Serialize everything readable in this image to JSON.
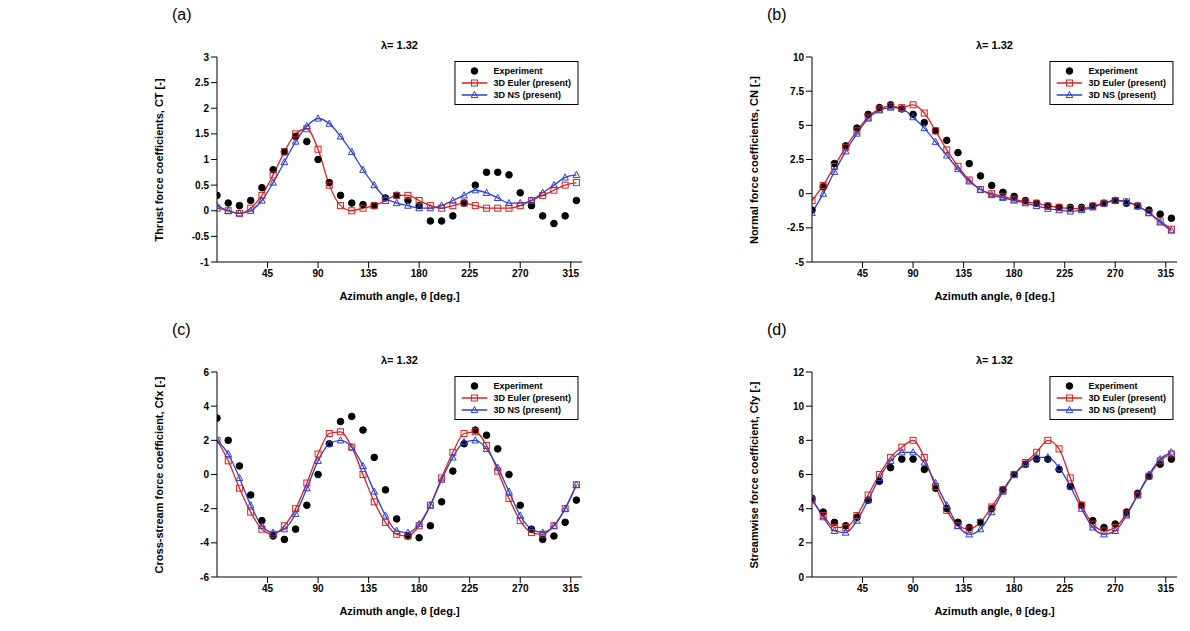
{
  "chart_data": [
    {
      "type": "line",
      "panel_label": "(a)",
      "title": "λ= 1.32",
      "x_label": "Azimuth angle, θ [deg.]",
      "y_label": "Thrust force coefficients, CT [-]",
      "xlim": [
        0,
        325
      ],
      "xticks": [
        45,
        90,
        135,
        180,
        225,
        270,
        315
      ],
      "ylim": [
        -1,
        3
      ],
      "yticks": [
        -1,
        -0.5,
        0,
        0.5,
        1,
        1.5,
        2,
        2.5,
        3
      ],
      "grid": false,
      "legend": "upper right",
      "series": [
        {
          "name": "Experiment",
          "color": "#000000",
          "type": "scatter",
          "marker": "circle",
          "x": [
            0,
            10,
            20,
            30,
            40,
            50,
            60,
            70,
            80,
            90,
            100,
            110,
            120,
            130,
            140,
            150,
            160,
            170,
            180,
            190,
            200,
            210,
            220,
            230,
            240,
            250,
            260,
            270,
            280,
            290,
            300,
            310,
            320
          ],
          "values": [
            0.3,
            0.15,
            0.1,
            0.2,
            0.45,
            0.8,
            1.15,
            1.45,
            1.35,
            1.0,
            0.55,
            0.3,
            0.15,
            0.12,
            0.1,
            0.25,
            0.3,
            0.2,
            0.1,
            -0.2,
            -0.2,
            -0.1,
            0.15,
            0.5,
            0.75,
            0.75,
            0.7,
            0.35,
            0.1,
            -0.1,
            -0.25,
            -0.1,
            0.2
          ]
        },
        {
          "name": "3D Euler (present)",
          "color": "#e0201e",
          "type": "line",
          "marker": "square",
          "line_style": "solid",
          "x": [
            0,
            10,
            20,
            30,
            40,
            50,
            60,
            70,
            80,
            90,
            100,
            110,
            120,
            130,
            140,
            150,
            160,
            170,
            180,
            190,
            200,
            210,
            220,
            230,
            240,
            250,
            260,
            270,
            280,
            290,
            300,
            310,
            320
          ],
          "values": [
            0.05,
            0.0,
            -0.05,
            0.05,
            0.3,
            0.7,
            1.15,
            1.5,
            1.6,
            1.2,
            0.5,
            0.1,
            0.0,
            0.05,
            0.1,
            0.2,
            0.3,
            0.3,
            0.2,
            0.1,
            0.05,
            0.1,
            0.15,
            0.1,
            0.05,
            0.05,
            0.05,
            0.1,
            0.2,
            0.3,
            0.4,
            0.5,
            0.55
          ]
        },
        {
          "name": "3D NS (present)",
          "color": "#2b3fd6",
          "type": "line",
          "marker": "triangle",
          "line_style": "solid",
          "x": [
            0,
            10,
            20,
            30,
            40,
            50,
            60,
            70,
            80,
            90,
            100,
            110,
            120,
            130,
            140,
            150,
            160,
            170,
            180,
            190,
            200,
            210,
            220,
            230,
            240,
            250,
            260,
            270,
            280,
            290,
            300,
            310,
            320
          ],
          "values": [
            0.1,
            0.0,
            -0.05,
            0.0,
            0.2,
            0.55,
            0.95,
            1.35,
            1.65,
            1.8,
            1.7,
            1.45,
            1.15,
            0.8,
            0.5,
            0.25,
            0.15,
            0.1,
            0.05,
            0.05,
            0.1,
            0.2,
            0.3,
            0.4,
            0.35,
            0.25,
            0.15,
            0.15,
            0.2,
            0.35,
            0.5,
            0.65,
            0.7
          ]
        }
      ]
    },
    {
      "type": "line",
      "panel_label": "(b)",
      "title": "λ= 1.32",
      "x_label": "Azimuth angle, θ [deg.]",
      "y_label": "Normal force coefficients, CN [-]",
      "xlim": [
        0,
        325
      ],
      "xticks": [
        45,
        90,
        135,
        180,
        225,
        270,
        315
      ],
      "ylim": [
        -5,
        10
      ],
      "yticks": [
        -5,
        -2.5,
        0,
        2.5,
        5,
        7.5,
        10
      ],
      "grid": false,
      "legend": "upper right",
      "series": [
        {
          "name": "Experiment",
          "color": "#000000",
          "type": "scatter",
          "marker": "circle",
          "x": [
            0,
            10,
            20,
            30,
            40,
            50,
            60,
            70,
            80,
            90,
            100,
            110,
            120,
            130,
            140,
            150,
            160,
            170,
            180,
            190,
            200,
            210,
            220,
            230,
            240,
            250,
            260,
            270,
            280,
            290,
            300,
            310,
            320
          ],
          "values": [
            -1.2,
            0.5,
            2.2,
            3.5,
            4.8,
            5.8,
            6.3,
            6.5,
            6.2,
            5.8,
            5.2,
            4.6,
            3.9,
            3.0,
            2.2,
            1.3,
            0.6,
            0.1,
            -0.2,
            -0.5,
            -0.7,
            -0.9,
            -1.0,
            -1.0,
            -1.0,
            -0.9,
            -0.7,
            -0.5,
            -0.7,
            -0.9,
            -1.2,
            -1.5,
            -1.8
          ]
        },
        {
          "name": "3D Euler (present)",
          "color": "#e0201e",
          "type": "line",
          "marker": "square",
          "line_style": "solid",
          "x": [
            0,
            10,
            20,
            30,
            40,
            50,
            60,
            70,
            80,
            90,
            100,
            110,
            120,
            130,
            140,
            150,
            160,
            170,
            180,
            190,
            200,
            210,
            220,
            230,
            240,
            250,
            260,
            270,
            280,
            290,
            300,
            310,
            320
          ],
          "values": [
            -0.5,
            0.6,
            2.0,
            3.4,
            4.6,
            5.6,
            6.2,
            6.4,
            6.3,
            6.5,
            5.9,
            4.6,
            3.2,
            2.0,
            1.0,
            0.3,
            0.0,
            -0.2,
            -0.4,
            -0.6,
            -0.7,
            -0.9,
            -1.0,
            -1.1,
            -1.1,
            -0.9,
            -0.7,
            -0.5,
            -0.6,
            -0.9,
            -1.4,
            -2.0,
            -2.6
          ]
        },
        {
          "name": "3D NS (present)",
          "color": "#2b3fd6",
          "type": "line",
          "marker": "triangle",
          "line_style": "solid",
          "x": [
            0,
            10,
            20,
            30,
            40,
            50,
            60,
            70,
            80,
            90,
            100,
            110,
            120,
            130,
            140,
            150,
            160,
            170,
            180,
            190,
            200,
            210,
            220,
            230,
            240,
            250,
            260,
            270,
            280,
            290,
            300,
            310,
            320
          ],
          "values": [
            -1.4,
            0.0,
            1.6,
            3.1,
            4.4,
            5.5,
            6.1,
            6.3,
            6.2,
            5.6,
            4.8,
            3.8,
            2.8,
            1.8,
            0.9,
            0.3,
            -0.1,
            -0.3,
            -0.5,
            -0.7,
            -0.9,
            -1.1,
            -1.2,
            -1.3,
            -1.2,
            -1.0,
            -0.7,
            -0.5,
            -0.6,
            -0.9,
            -1.4,
            -2.1,
            -2.7
          ]
        }
      ]
    },
    {
      "type": "line",
      "panel_label": "(c)",
      "title": "λ= 1.32",
      "x_label": "Azimuth angle, θ [deg.]",
      "y_label": "Cross-stream force coefficient, Cfx [-]",
      "xlim": [
        0,
        325
      ],
      "xticks": [
        45,
        90,
        135,
        180,
        225,
        270,
        315
      ],
      "ylim": [
        -6,
        6
      ],
      "yticks": [
        -6,
        -4,
        -2,
        0,
        2,
        4,
        6
      ],
      "grid": false,
      "legend": "upper right",
      "series": [
        {
          "name": "Experiment",
          "color": "#000000",
          "type": "scatter",
          "marker": "circle",
          "x": [
            0,
            10,
            20,
            30,
            40,
            50,
            60,
            70,
            80,
            90,
            100,
            110,
            120,
            130,
            140,
            150,
            160,
            170,
            180,
            190,
            200,
            210,
            220,
            230,
            240,
            250,
            260,
            270,
            280,
            290,
            300,
            310,
            320
          ],
          "values": [
            3.3,
            2.0,
            0.5,
            -1.2,
            -2.7,
            -3.6,
            -3.8,
            -3.2,
            -1.8,
            0.0,
            1.8,
            3.1,
            3.4,
            2.6,
            1.0,
            -0.9,
            -2.6,
            -3.6,
            -3.7,
            -3.0,
            -1.6,
            0.2,
            1.8,
            2.6,
            2.3,
            1.5,
            0.0,
            -1.8,
            -3.2,
            -3.8,
            -3.6,
            -2.8,
            -1.5
          ]
        },
        {
          "name": "3D Euler (present)",
          "color": "#e0201e",
          "type": "line",
          "marker": "square",
          "line_style": "solid",
          "x": [
            0,
            10,
            20,
            30,
            40,
            50,
            60,
            70,
            80,
            90,
            100,
            110,
            120,
            130,
            140,
            150,
            160,
            170,
            180,
            190,
            200,
            210,
            220,
            230,
            240,
            250,
            260,
            270,
            280,
            290,
            300,
            310,
            320
          ],
          "values": [
            2.0,
            0.8,
            -0.8,
            -2.2,
            -3.2,
            -3.5,
            -3.0,
            -2.0,
            -0.5,
            1.2,
            2.4,
            2.5,
            1.6,
            0.0,
            -1.6,
            -2.8,
            -3.5,
            -3.6,
            -3.0,
            -1.8,
            -0.2,
            1.3,
            2.4,
            2.5,
            1.7,
            0.2,
            -1.4,
            -2.7,
            -3.4,
            -3.5,
            -3.0,
            -2.0,
            -0.6
          ]
        },
        {
          "name": "3D NS (present)",
          "color": "#2b3fd6",
          "type": "line",
          "marker": "triangle",
          "line_style": "solid",
          "x": [
            0,
            10,
            20,
            30,
            40,
            50,
            60,
            70,
            80,
            90,
            100,
            110,
            120,
            130,
            140,
            150,
            160,
            170,
            180,
            190,
            200,
            210,
            220,
            230,
            240,
            250,
            260,
            270,
            280,
            290,
            300,
            310,
            320
          ],
          "values": [
            2.0,
            1.2,
            -0.2,
            -1.8,
            -3.0,
            -3.4,
            -3.2,
            -2.3,
            -0.8,
            0.8,
            1.8,
            2.0,
            1.6,
            0.5,
            -1.0,
            -2.4,
            -3.3,
            -3.4,
            -2.9,
            -1.8,
            -0.3,
            1.0,
            1.9,
            2.0,
            1.5,
            0.4,
            -1.0,
            -2.4,
            -3.2,
            -3.4,
            -3.0,
            -2.0,
            -0.6
          ]
        }
      ]
    },
    {
      "type": "line",
      "panel_label": "(d)",
      "title": "λ= 1.32",
      "x_label": "Azimuth angle, θ [deg.]",
      "y_label": "Streamwise force coefficient, Cfy [-]",
      "xlim": [
        0,
        325
      ],
      "xticks": [
        45,
        90,
        135,
        180,
        225,
        270,
        315
      ],
      "ylim": [
        0,
        12
      ],
      "yticks": [
        0,
        2,
        4,
        6,
        8,
        10,
        12
      ],
      "grid": false,
      "legend": "upper right",
      "series": [
        {
          "name": "Experiment",
          "color": "#000000",
          "type": "scatter",
          "marker": "circle",
          "x": [
            0,
            10,
            20,
            30,
            40,
            50,
            60,
            70,
            80,
            90,
            100,
            110,
            120,
            130,
            140,
            150,
            160,
            170,
            180,
            190,
            200,
            210,
            220,
            230,
            240,
            250,
            260,
            270,
            280,
            290,
            300,
            310,
            320
          ],
          "values": [
            4.6,
            3.8,
            3.2,
            3.0,
            3.5,
            4.5,
            5.6,
            6.4,
            6.9,
            6.9,
            6.3,
            5.2,
            4.0,
            3.2,
            2.9,
            3.2,
            4.0,
            5.1,
            6.0,
            6.6,
            6.9,
            6.9,
            6.3,
            5.3,
            4.2,
            3.3,
            2.9,
            3.1,
            3.8,
            4.9,
            5.9,
            6.6,
            6.9
          ]
        },
        {
          "name": "3D Euler (present)",
          "color": "#e0201e",
          "type": "line",
          "marker": "square",
          "line_style": "solid",
          "x": [
            0,
            10,
            20,
            30,
            40,
            50,
            60,
            70,
            80,
            90,
            100,
            110,
            120,
            130,
            140,
            150,
            160,
            170,
            180,
            190,
            200,
            210,
            220,
            230,
            240,
            250,
            260,
            270,
            280,
            290,
            300,
            310,
            320
          ],
          "values": [
            4.5,
            3.6,
            2.9,
            2.9,
            3.6,
            4.8,
            6.0,
            7.0,
            7.6,
            8.0,
            7.0,
            5.3,
            3.9,
            3.0,
            2.8,
            3.2,
            4.1,
            5.1,
            6.0,
            6.7,
            7.3,
            8.0,
            7.5,
            5.8,
            4.2,
            3.1,
            2.7,
            2.9,
            3.7,
            4.8,
            5.9,
            6.8,
            7.2
          ]
        },
        {
          "name": "3D NS (present)",
          "color": "#2b3fd6",
          "type": "line",
          "marker": "triangle",
          "line_style": "solid",
          "x": [
            0,
            10,
            20,
            30,
            40,
            50,
            60,
            70,
            80,
            90,
            100,
            110,
            120,
            130,
            140,
            150,
            160,
            170,
            180,
            190,
            200,
            210,
            220,
            230,
            240,
            250,
            260,
            270,
            280,
            290,
            300,
            310,
            320
          ],
          "values": [
            4.6,
            3.5,
            2.7,
            2.6,
            3.3,
            4.5,
            5.8,
            6.8,
            7.3,
            7.3,
            6.7,
            5.5,
            4.2,
            3.0,
            2.5,
            2.8,
            3.8,
            5.0,
            6.0,
            6.6,
            7.0,
            7.0,
            6.4,
            5.3,
            4.0,
            2.9,
            2.5,
            2.7,
            3.6,
            4.8,
            6.0,
            6.9,
            7.3
          ]
        }
      ]
    }
  ]
}
